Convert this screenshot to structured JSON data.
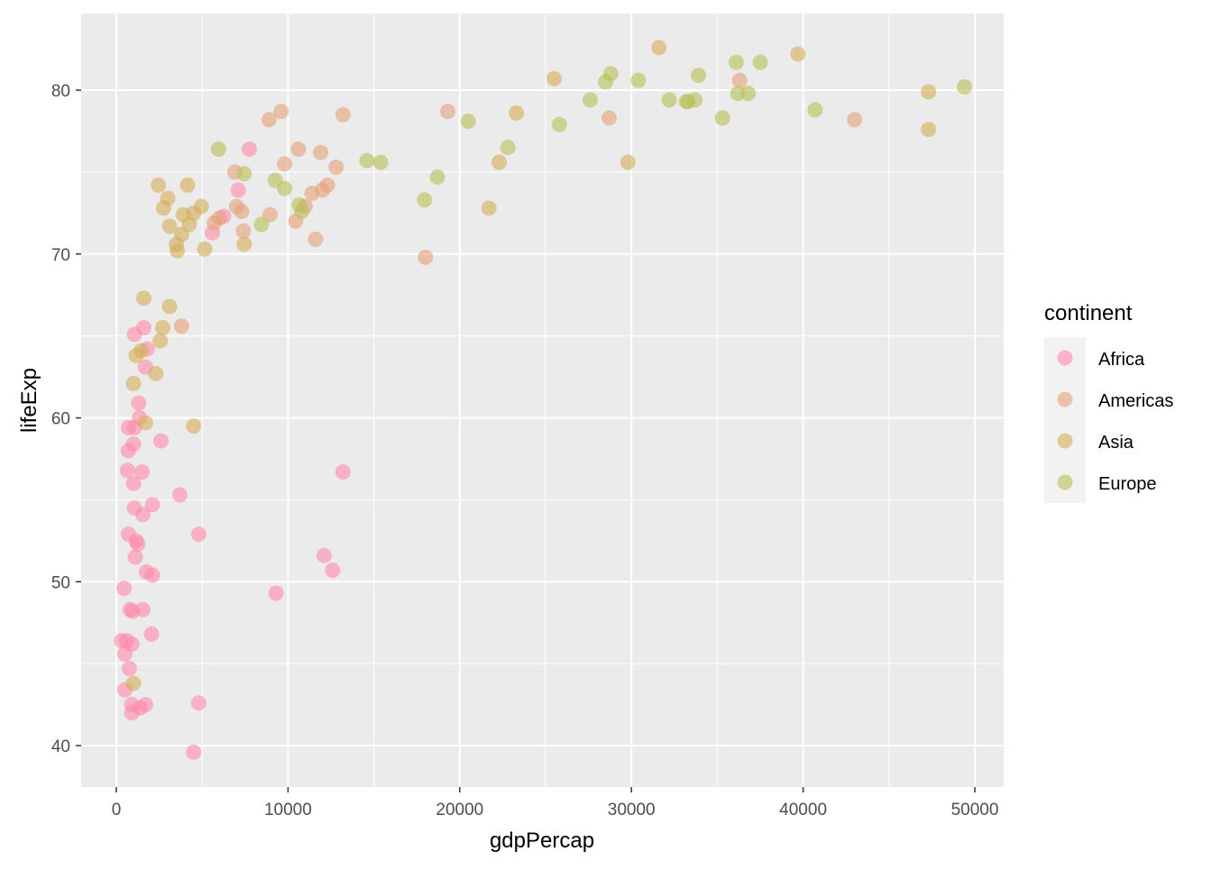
{
  "chart_data": {
    "type": "scatter",
    "title": "",
    "xlabel": "gdpPercap",
    "ylabel": "lifeExp",
    "xlim": [
      -2000,
      51500
    ],
    "ylim": [
      37.5,
      84.5
    ],
    "x_ticks": [
      0,
      10000,
      20000,
      30000,
      40000,
      50000
    ],
    "y_ticks": [
      40,
      50,
      60,
      70,
      80
    ],
    "x_tick_labels": [
      "0",
      "10000",
      "20000",
      "30000",
      "40000",
      "50000"
    ],
    "y_tick_labels": [
      "40",
      "50",
      "60",
      "70",
      "80"
    ],
    "grid": true,
    "legend": {
      "title": "continent",
      "position": "right"
    },
    "series": [
      {
        "name": "Africa",
        "color": "#F8766D",
        "fill": "#FF88AA",
        "points": [
          [
            7750,
            76.4
          ],
          [
            7100,
            73.9
          ],
          [
            5600,
            71.3
          ],
          [
            6250,
            72.3
          ],
          [
            1600,
            65.5
          ],
          [
            1050,
            65.1
          ],
          [
            1800,
            64.2
          ],
          [
            1700,
            63.1
          ],
          [
            1300,
            60.9
          ],
          [
            1350,
            60.0
          ],
          [
            700,
            59.4
          ],
          [
            1050,
            59.4
          ],
          [
            2600,
            58.6
          ],
          [
            1000,
            58.4
          ],
          [
            700,
            58.0
          ],
          [
            650,
            56.8
          ],
          [
            1500,
            56.7
          ],
          [
            13200,
            56.7
          ],
          [
            1000,
            56.0
          ],
          [
            3700,
            55.3
          ],
          [
            2100,
            54.7
          ],
          [
            1050,
            54.5
          ],
          [
            1550,
            54.1
          ],
          [
            4800,
            52.9
          ],
          [
            700,
            52.9
          ],
          [
            1150,
            52.5
          ],
          [
            1250,
            52.3
          ],
          [
            12100,
            51.6
          ],
          [
            1100,
            51.5
          ],
          [
            12600,
            50.7
          ],
          [
            1750,
            50.6
          ],
          [
            2100,
            50.4
          ],
          [
            450,
            49.6
          ],
          [
            9300,
            49.3
          ],
          [
            1550,
            48.3
          ],
          [
            800,
            48.3
          ],
          [
            950,
            48.2
          ],
          [
            2050,
            46.8
          ],
          [
            300,
            46.4
          ],
          [
            600,
            46.4
          ],
          [
            900,
            46.2
          ],
          [
            500,
            45.6
          ],
          [
            750,
            44.7
          ],
          [
            500,
            43.4
          ],
          [
            4800,
            42.6
          ],
          [
            1700,
            42.5
          ],
          [
            900,
            42.5
          ],
          [
            1400,
            42.3
          ],
          [
            900,
            42.0
          ],
          [
            4500,
            39.6
          ]
        ]
      },
      {
        "name": "Americas",
        "color": "#D39200",
        "fill": "#E8A07A",
        "points": [
          [
            36300,
            80.6
          ],
          [
            43000,
            78.2
          ],
          [
            9600,
            78.7
          ],
          [
            8900,
            78.2
          ],
          [
            13200,
            78.5
          ],
          [
            19300,
            78.7
          ],
          [
            28700,
            78.3
          ],
          [
            10600,
            76.4
          ],
          [
            11900,
            76.2
          ],
          [
            9800,
            75.5
          ],
          [
            12800,
            75.3
          ],
          [
            6900,
            75.0
          ],
          [
            12300,
            74.2
          ],
          [
            11400,
            73.7
          ],
          [
            12000,
            73.9
          ],
          [
            11000,
            72.9
          ],
          [
            7000,
            72.9
          ],
          [
            7300,
            72.6
          ],
          [
            8950,
            72.4
          ],
          [
            6000,
            72.2
          ],
          [
            5700,
            71.9
          ],
          [
            10450,
            72.0
          ],
          [
            7400,
            71.4
          ],
          [
            11600,
            70.9
          ],
          [
            18000,
            69.8
          ],
          [
            3800,
            65.6
          ]
        ]
      },
      {
        "name": "Asia",
        "color": "#93AA00",
        "fill": "#D4AE57",
        "points": [
          [
            31600,
            82.6
          ],
          [
            39700,
            82.2
          ],
          [
            25500,
            80.7
          ],
          [
            47300,
            79.9
          ],
          [
            23300,
            78.6
          ],
          [
            47300,
            77.6
          ],
          [
            29800,
            75.6
          ],
          [
            22300,
            75.6
          ],
          [
            21700,
            72.8
          ],
          [
            2450,
            74.2
          ],
          [
            4150,
            74.2
          ],
          [
            3000,
            73.4
          ],
          [
            4950,
            72.9
          ],
          [
            2750,
            72.8
          ],
          [
            4500,
            72.5
          ],
          [
            3900,
            72.4
          ],
          [
            4250,
            71.8
          ],
          [
            3100,
            71.7
          ],
          [
            3800,
            71.2
          ],
          [
            7450,
            70.6
          ],
          [
            3500,
            70.6
          ],
          [
            3550,
            70.2
          ],
          [
            5150,
            70.3
          ],
          [
            1600,
            67.3
          ],
          [
            3100,
            66.8
          ],
          [
            2700,
            65.5
          ],
          [
            2550,
            64.7
          ],
          [
            1450,
            64.1
          ],
          [
            1150,
            63.8
          ],
          [
            2300,
            62.7
          ],
          [
            1000,
            62.1
          ],
          [
            1700,
            59.7
          ],
          [
            4500,
            59.5
          ],
          [
            1000,
            43.8
          ]
        ]
      },
      {
        "name": "Europe",
        "color": "#00BA38",
        "fill": "#B8BF55",
        "points": [
          [
            28800,
            81.0
          ],
          [
            30400,
            80.6
          ],
          [
            36100,
            81.7
          ],
          [
            37500,
            81.7
          ],
          [
            28500,
            80.5
          ],
          [
            49400,
            80.2
          ],
          [
            33900,
            80.9
          ],
          [
            27600,
            79.4
          ],
          [
            32200,
            79.4
          ],
          [
            33200,
            79.3
          ],
          [
            33700,
            79.4
          ],
          [
            33300,
            79.3
          ],
          [
            36200,
            79.8
          ],
          [
            36800,
            79.8
          ],
          [
            40700,
            78.8
          ],
          [
            35300,
            78.3
          ],
          [
            20500,
            78.1
          ],
          [
            25800,
            77.9
          ],
          [
            22800,
            76.5
          ],
          [
            5950,
            76.4
          ],
          [
            14600,
            75.7
          ],
          [
            15400,
            75.6
          ],
          [
            7450,
            74.9
          ],
          [
            18700,
            74.7
          ],
          [
            9250,
            74.5
          ],
          [
            9800,
            74.0
          ],
          [
            17950,
            73.3
          ],
          [
            10650,
            73.0
          ],
          [
            10800,
            72.6
          ],
          [
            8450,
            71.8
          ]
        ]
      }
    ]
  }
}
